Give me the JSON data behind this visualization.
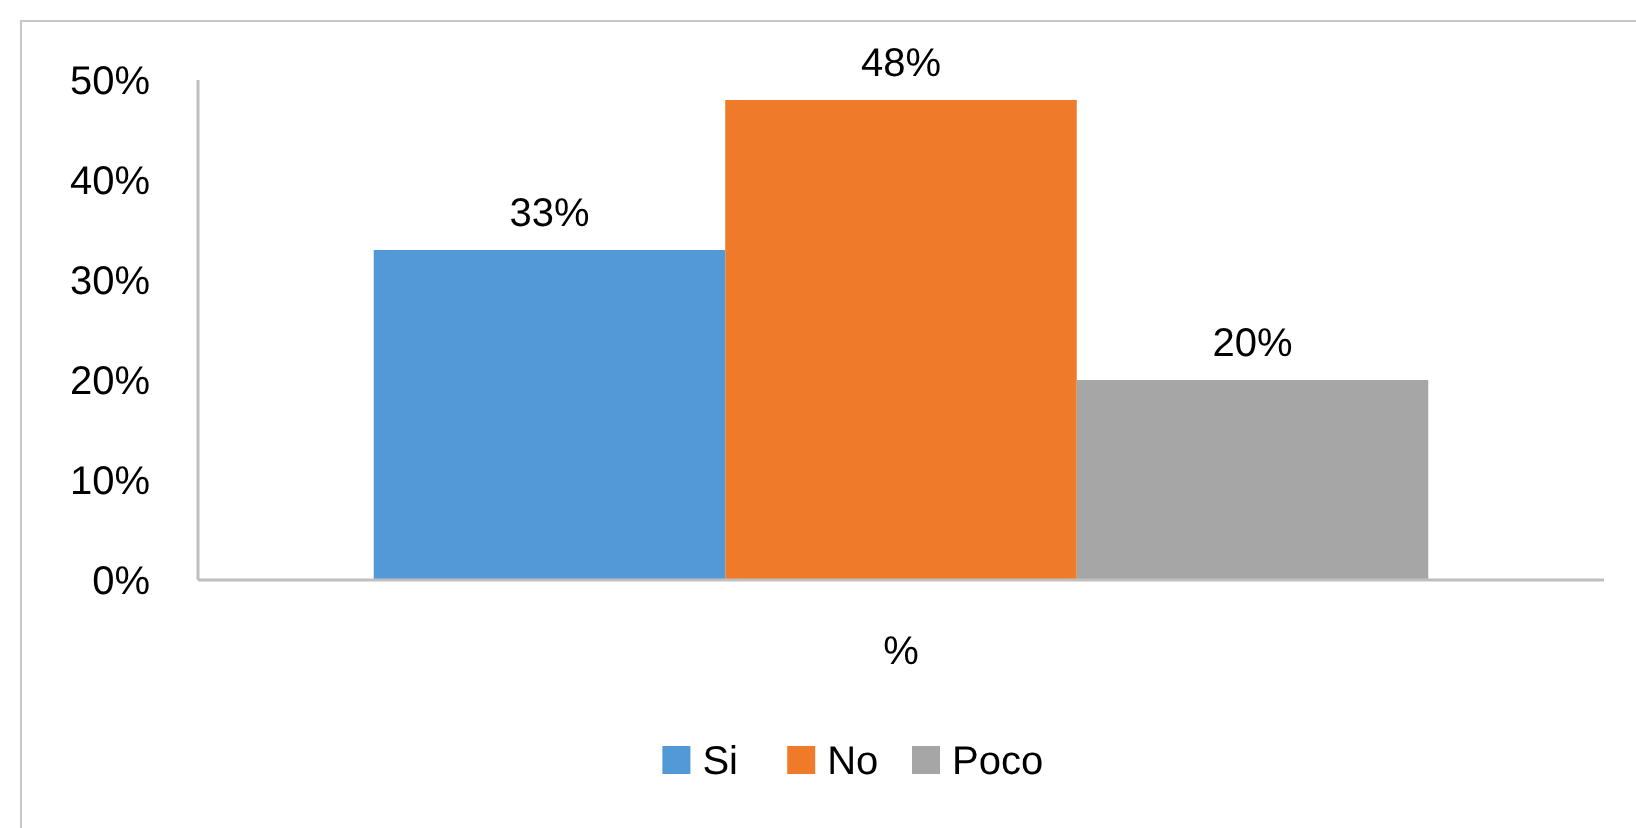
{
  "chart_data": {
    "type": "bar",
    "categories": [
      "%"
    ],
    "series": [
      {
        "name": "Si",
        "color": "#5299d8",
        "values": [
          33
        ],
        "value_labels": [
          "33%"
        ]
      },
      {
        "name": "No",
        "color": "#ef7b2a",
        "values": [
          48
        ],
        "value_labels": [
          "48%"
        ]
      },
      {
        "name": "Poco",
        "color": "#a6a6a6",
        "values": [
          20
        ],
        "value_labels": [
          "20%"
        ]
      }
    ],
    "ylim": [
      0,
      50
    ],
    "yticks": [
      {
        "value": 0,
        "label": "0%"
      },
      {
        "value": 10,
        "label": "10%"
      },
      {
        "value": 20,
        "label": "20%"
      },
      {
        "value": 30,
        "label": "30%"
      },
      {
        "value": 40,
        "label": "40%"
      },
      {
        "value": 50,
        "label": "50%"
      }
    ],
    "grid": false,
    "legend": "bottom"
  }
}
